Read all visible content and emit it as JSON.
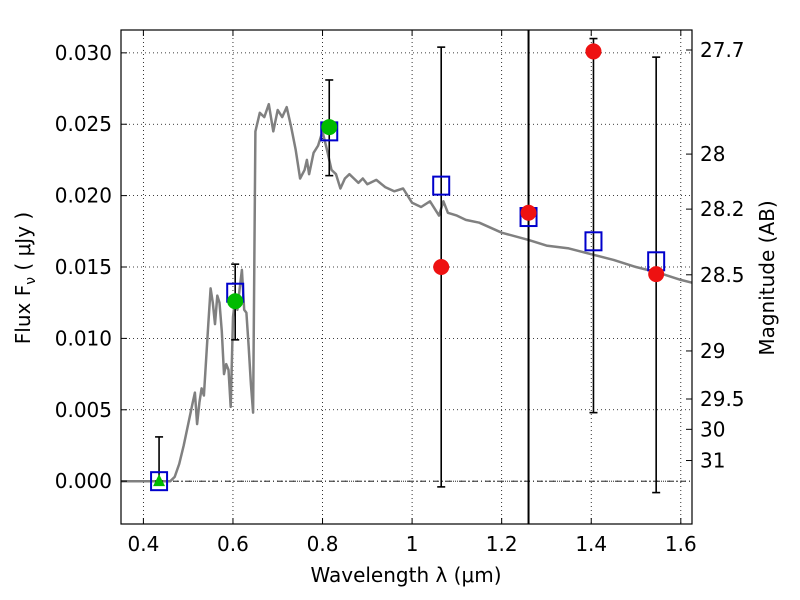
{
  "chart_data": {
    "type": "scatter",
    "xlabel": "Wavelength  λ (μm)",
    "ylabel": "Flux  F",
    "ylabel_sub": "ν",
    "ylabel_unit": "( μJy )",
    "y2label": "Magnitude (AB)",
    "xlim": [
      0.35,
      1.625
    ],
    "ylim": [
      -0.003,
      0.0316
    ],
    "grid": true,
    "x_ticks": [
      {
        "v": 0.4,
        "label": "0.4"
      },
      {
        "v": 0.6,
        "label": "0.6"
      },
      {
        "v": 0.8,
        "label": "0.8"
      },
      {
        "v": 1.0,
        "label": "1"
      },
      {
        "v": 1.2,
        "label": "1.2"
      },
      {
        "v": 1.4,
        "label": "1.4"
      },
      {
        "v": 1.6,
        "label": "1.6"
      }
    ],
    "y_ticks": [
      {
        "v": 0.0,
        "label": "0.000"
      },
      {
        "v": 0.005,
        "label": "0.005"
      },
      {
        "v": 0.01,
        "label": "0.010"
      },
      {
        "v": 0.015,
        "label": "0.015"
      },
      {
        "v": 0.02,
        "label": "0.020"
      },
      {
        "v": 0.025,
        "label": "0.025"
      },
      {
        "v": 0.03,
        "label": "0.030"
      }
    ],
    "mag_ticks": [
      {
        "mag": 27.7,
        "label": "27.7"
      },
      {
        "mag": 28.0,
        "label": "28"
      },
      {
        "mag": 28.2,
        "label": "28.2"
      },
      {
        "mag": 28.5,
        "label": "28.5"
      },
      {
        "mag": 29.0,
        "label": "29"
      },
      {
        "mag": 29.5,
        "label": "29.5"
      },
      {
        "mag": 30.0,
        "label": "30"
      },
      {
        "mag": 31.0,
        "label": "31"
      }
    ],
    "zero_line": 0.0,
    "vertical_line_x": 1.26,
    "template_spectrum": {
      "color": "#808080",
      "x": [
        0.35,
        0.46,
        0.47,
        0.48,
        0.49,
        0.5,
        0.51,
        0.515,
        0.52,
        0.525,
        0.53,
        0.535,
        0.54,
        0.545,
        0.55,
        0.555,
        0.56,
        0.565,
        0.57,
        0.575,
        0.58,
        0.585,
        0.59,
        0.595,
        0.6,
        0.605,
        0.61,
        0.615,
        0.62,
        0.625,
        0.63,
        0.635,
        0.64,
        0.645,
        0.65,
        0.66,
        0.67,
        0.68,
        0.69,
        0.7,
        0.71,
        0.72,
        0.73,
        0.74,
        0.75,
        0.76,
        0.765,
        0.77,
        0.78,
        0.79,
        0.8,
        0.81,
        0.82,
        0.83,
        0.84,
        0.85,
        0.86,
        0.87,
        0.88,
        0.89,
        0.9,
        0.92,
        0.94,
        0.96,
        0.98,
        1.0,
        1.02,
        1.04,
        1.06,
        1.07,
        1.08,
        1.1,
        1.12,
        1.15,
        1.2,
        1.26,
        1.3,
        1.35,
        1.4,
        1.45,
        1.5,
        1.55,
        1.6,
        1.625
      ],
      "y": [
        0.0,
        0.0,
        0.0003,
        0.0012,
        0.0025,
        0.004,
        0.0055,
        0.0062,
        0.004,
        0.0055,
        0.0065,
        0.006,
        0.0085,
        0.011,
        0.0135,
        0.0125,
        0.011,
        0.013,
        0.0125,
        0.0105,
        0.0075,
        0.0082,
        0.0078,
        0.0052,
        0.0115,
        0.0128,
        0.012,
        0.0135,
        0.0148,
        0.012,
        0.0118,
        0.0095,
        0.0068,
        0.0048,
        0.0245,
        0.0258,
        0.0255,
        0.0264,
        0.0245,
        0.026,
        0.0255,
        0.0262,
        0.0248,
        0.0232,
        0.0212,
        0.0218,
        0.0225,
        0.0215,
        0.023,
        0.0235,
        0.0245,
        0.0232,
        0.0218,
        0.0215,
        0.0205,
        0.0212,
        0.0215,
        0.0212,
        0.0209,
        0.0212,
        0.0208,
        0.0211,
        0.0206,
        0.0203,
        0.0205,
        0.0195,
        0.0192,
        0.0196,
        0.0186,
        0.0196,
        0.0188,
        0.0186,
        0.0183,
        0.0181,
        0.0174,
        0.0169,
        0.0165,
        0.0163,
        0.0159,
        0.0155,
        0.015,
        0.0146,
        0.0141,
        0.0139
      ]
    },
    "model_points": {
      "color": "#0000cc",
      "marker": "open-square",
      "x": [
        0.435,
        0.605,
        0.815,
        1.065,
        1.26,
        1.405,
        1.545
      ],
      "y": [
        0.0,
        0.0132,
        0.0245,
        0.0207,
        0.0185,
        0.0168,
        0.0154
      ]
    },
    "detections": {
      "color": "#00bb00",
      "marker": "circle",
      "x": [
        0.605,
        0.815
      ],
      "y": [
        0.0126,
        0.0248
      ]
    },
    "upper_limit_point": {
      "color": "#00bb00",
      "marker": "triangle",
      "x": 0.435,
      "y": 0.0
    },
    "nondetections": {
      "color": "#ee1111",
      "marker": "circle",
      "x": [
        1.065,
        1.26,
        1.405,
        1.545
      ],
      "y": [
        0.015,
        0.0188,
        0.0301,
        0.0145
      ]
    },
    "error_bars": [
      {
        "x": 0.435,
        "low": 0.0,
        "high": 0.0031
      },
      {
        "x": 0.605,
        "low": 0.0099,
        "high": 0.0152
      },
      {
        "x": 0.815,
        "low": 0.0214,
        "high": 0.0281
      },
      {
        "x": 1.065,
        "low": -0.0004,
        "high": 0.0304
      },
      {
        "x": 1.405,
        "low": 0.0048,
        "high": 0.031
      },
      {
        "x": 1.545,
        "low": -0.0008,
        "high": 0.0297
      }
    ]
  }
}
